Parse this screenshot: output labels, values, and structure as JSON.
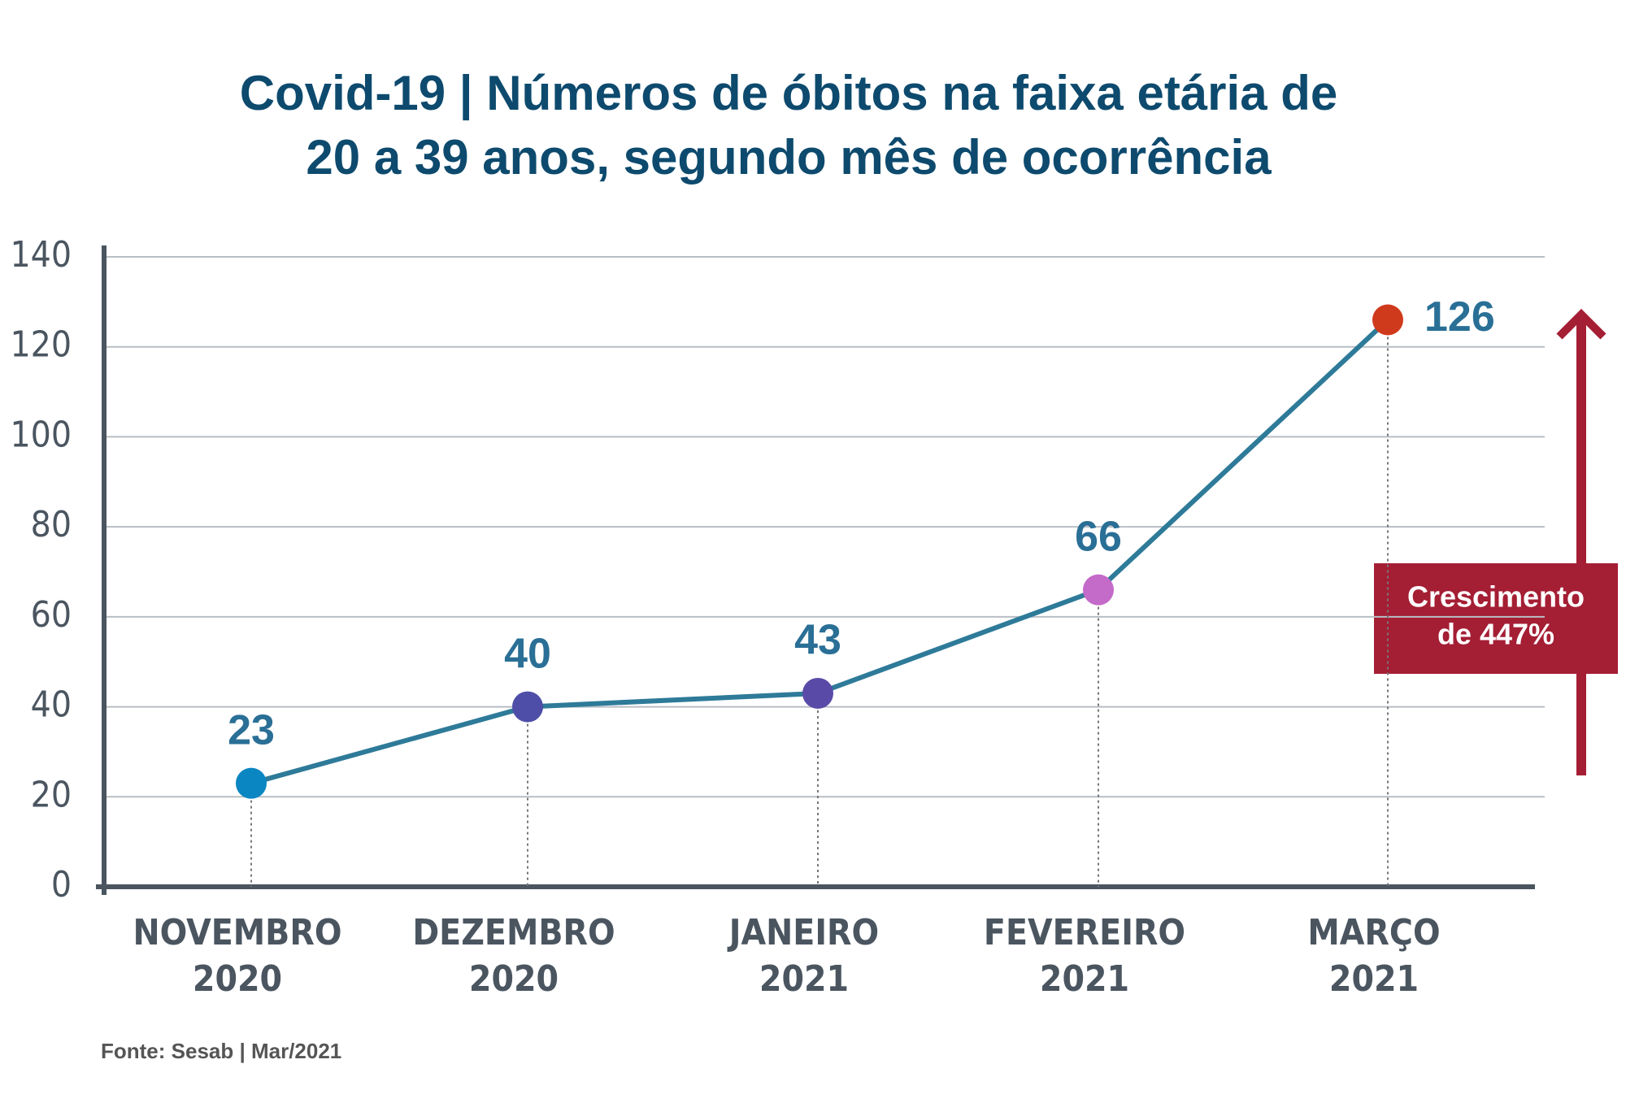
{
  "chart_data": {
    "type": "line",
    "title": [
      "Covid-19 | Números de óbitos na faixa etária de",
      "20 a 39 anos, segundo mês de ocorrência"
    ],
    "categories": [
      [
        "NOVEMBRO",
        "2020"
      ],
      [
        "DEZEMBRO",
        "2020"
      ],
      [
        "JANEIRO",
        "2021"
      ],
      [
        "FEVEREIRO",
        "2021"
      ],
      [
        "MARÇO",
        "2021"
      ]
    ],
    "values": [
      23,
      40,
      43,
      66,
      126
    ],
    "color": "#2e7a99",
    "point_colors": [
      "#0a86c2",
      "#4e4ea8",
      "#5a4aa8",
      "#c46ac8",
      "#d03a1c"
    ],
    "ylim": [
      0,
      140
    ],
    "yticks": [
      0,
      20,
      40,
      60,
      80,
      100,
      120,
      140
    ],
    "grid": true,
    "annotation": [
      "Crescimento",
      "de 447%"
    ],
    "source": "Fonte: Sesab | Mar/2021"
  }
}
